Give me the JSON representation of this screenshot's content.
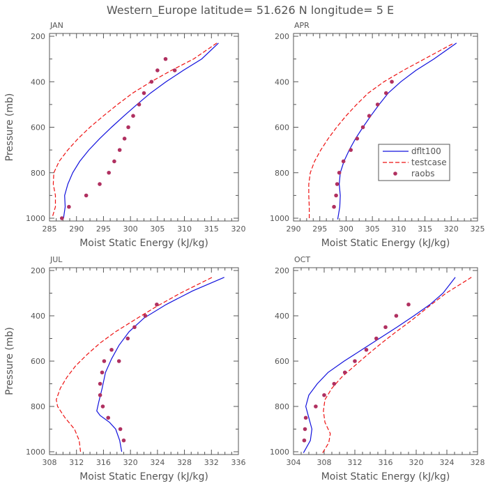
{
  "title": "Western_Europe  latitude= 51.626 N longitude= 5 E",
  "colors": {
    "dflt": "#1111dd",
    "testcase": "#ee1111",
    "raobs": "#b03060",
    "axis": "#555555"
  },
  "legend": {
    "dflt": "dflt100",
    "testcase": "testcase",
    "raobs": "raobs"
  },
  "chart_data": [
    {
      "type": "line",
      "panel": "JAN",
      "xlabel": "Moist Static Energy (kJ/kg)",
      "ylabel": "Pressure (mb)",
      "xlim": [
        285,
        320
      ],
      "ylim": [
        1000,
        200
      ],
      "xticks": [
        285,
        290,
        295,
        300,
        305,
        310,
        315,
        320
      ],
      "yticks": [
        200,
        400,
        600,
        800,
        1000
      ],
      "ytick_labels": true,
      "series": [
        {
          "name": "dflt100",
          "x": [
            287.6,
            287.9,
            287.8,
            288.4,
            289.3,
            290.6,
            292.3,
            294.3,
            296.5,
            298.8,
            301.2,
            303.7,
            306.6,
            309.8,
            313.2,
            316.3
          ],
          "p": [
            1000,
            950,
            900,
            850,
            800,
            750,
            700,
            650,
            600,
            550,
            500,
            450,
            400,
            350,
            300,
            230
          ]
        },
        {
          "name": "testcase",
          "x": [
            285.6,
            286.1,
            286.1,
            285.7,
            285.8,
            286.8,
            288.4,
            290.3,
            292.5,
            295.0,
            297.6,
            300.4,
            303.8,
            307.6,
            311.7,
            316.0
          ],
          "p": [
            990,
            950,
            900,
            850,
            800,
            750,
            700,
            650,
            600,
            550,
            500,
            450,
            400,
            350,
            300,
            230
          ]
        },
        {
          "name": "raobs",
          "x": [
            287.3,
            288.6,
            291.8,
            294.3,
            296.0,
            297.0,
            298.0,
            298.9,
            299.6,
            300.5,
            301.6,
            302.5,
            303.9,
            305.0,
            306.5,
            308.2
          ],
          "p": [
            1000,
            950,
            900,
            850,
            800,
            750,
            700,
            650,
            600,
            550,
            500,
            450,
            400,
            350,
            300,
            350
          ]
        }
      ]
    },
    {
      "type": "line",
      "panel": "APR",
      "xlabel": "Moist Static Energy (kJ/kg)",
      "ylabel": "",
      "xlim": [
        290,
        325
      ],
      "ylim": [
        1000,
        200
      ],
      "xticks": [
        290,
        295,
        300,
        305,
        310,
        315,
        320,
        325
      ],
      "yticks": [
        200,
        400,
        600,
        800,
        1000
      ],
      "ytick_labels": true,
      "series": [
        {
          "name": "dflt100",
          "x": [
            298.4,
            298.8,
            298.9,
            298.7,
            298.9,
            299.6,
            300.6,
            301.8,
            303.2,
            304.7,
            306.3,
            308.0,
            310.4,
            313.3,
            316.7,
            321.0
          ],
          "p": [
            1005,
            950,
            900,
            850,
            800,
            750,
            700,
            650,
            600,
            550,
            500,
            450,
            400,
            350,
            300,
            230
          ]
        },
        {
          "name": "testcase",
          "x": [
            293.0,
            293.0,
            292.9,
            292.9,
            293.2,
            294.0,
            295.2,
            296.6,
            298.2,
            300.0,
            302.0,
            304.2,
            307.2,
            310.9,
            314.9,
            320.5
          ],
          "p": [
            1000,
            950,
            900,
            850,
            800,
            750,
            700,
            650,
            600,
            550,
            500,
            450,
            400,
            350,
            300,
            230
          ]
        },
        {
          "name": "raobs",
          "x": [
            297.7,
            298.1,
            298.3,
            298.7,
            299.5,
            300.9,
            302.1,
            303.2,
            304.4,
            306.0,
            307.6,
            308.7
          ],
          "p": [
            950,
            900,
            850,
            800,
            750,
            700,
            650,
            600,
            550,
            500,
            450,
            400
          ]
        }
      ]
    },
    {
      "type": "line",
      "panel": "JUL",
      "xlabel": "Moist Static Energy (kJ/kg)",
      "ylabel": "Pressure (mb)",
      "xlim": [
        308,
        336
      ],
      "ylim": [
        1000,
        200
      ],
      "xticks": [
        308,
        312,
        316,
        320,
        324,
        328,
        332,
        336
      ],
      "yticks": [
        200,
        400,
        600,
        800,
        1000
      ],
      "ytick_labels": true,
      "series": [
        {
          "name": "dflt100",
          "x": [
            318.7,
            318.4,
            317.8,
            316.9,
            315.5,
            315.0,
            315.3,
            315.8,
            316.3,
            317.2,
            318.3,
            319.8,
            322.0,
            325.3,
            329.2,
            333.9
          ],
          "p": [
            1000,
            950,
            900,
            870,
            840,
            820,
            780,
            720,
            650,
            590,
            530,
            470,
            410,
            350,
            290,
            230
          ]
        },
        {
          "name": "testcase",
          "x": [
            312.6,
            312.4,
            311.7,
            310.3,
            309.2,
            309.0,
            309.6,
            310.6,
            311.9,
            313.6,
            315.5,
            317.8,
            320.5,
            323.8,
            327.4,
            332.1
          ],
          "p": [
            1000,
            950,
            900,
            850,
            800,
            770,
            720,
            670,
            620,
            570,
            520,
            470,
            420,
            360,
            300,
            230
          ]
        },
        {
          "name": "raobs",
          "x": [
            319.0,
            318.5,
            316.7,
            315.9,
            315.5,
            315.5,
            315.8,
            316.1,
            317.2,
            318.3,
            319.6,
            320.6,
            322.2,
            323.9
          ],
          "p": [
            950,
            900,
            850,
            800,
            750,
            700,
            650,
            600,
            550,
            600,
            500,
            450,
            400,
            350
          ]
        }
      ]
    },
    {
      "type": "line",
      "panel": "OCT",
      "xlabel": "Moist Static Energy (kJ/kg)",
      "ylabel": "",
      "xlim": [
        304,
        328
      ],
      "ylim": [
        1000,
        200
      ],
      "xticks": [
        304,
        308,
        312,
        316,
        320,
        324,
        328
      ],
      "yticks": [
        200,
        400,
        600,
        800,
        1000
      ],
      "ytick_labels": true,
      "series": [
        {
          "name": "dflt100",
          "x": [
            305.3,
            306.2,
            306.4,
            306.0,
            305.6,
            306.0,
            307.1,
            308.5,
            310.6,
            312.9,
            315.2,
            317.5,
            319.7,
            321.8,
            323.5,
            325.1
          ],
          "p": [
            1005,
            950,
            900,
            850,
            800,
            750,
            700,
            650,
            600,
            550,
            500,
            450,
            400,
            350,
            300,
            230
          ]
        },
        {
          "name": "testcase",
          "x": [
            307.8,
            308.6,
            308.8,
            308.1,
            307.9,
            308.1,
            309.0,
            310.3,
            312.0,
            313.7,
            315.5,
            317.4,
            319.4,
            321.6,
            323.9,
            327.2
          ],
          "p": [
            1005,
            960,
            920,
            870,
            820,
            770,
            720,
            670,
            620,
            570,
            520,
            470,
            420,
            360,
            300,
            230
          ]
        },
        {
          "name": "raobs",
          "x": [
            305.4,
            305.5,
            305.6,
            306.9,
            308.0,
            309.3,
            310.7,
            312.0,
            313.5,
            314.8,
            316.0,
            317.4,
            319.0
          ],
          "p": [
            950,
            900,
            850,
            800,
            750,
            700,
            650,
            600,
            550,
            500,
            450,
            400,
            350
          ]
        }
      ]
    }
  ]
}
